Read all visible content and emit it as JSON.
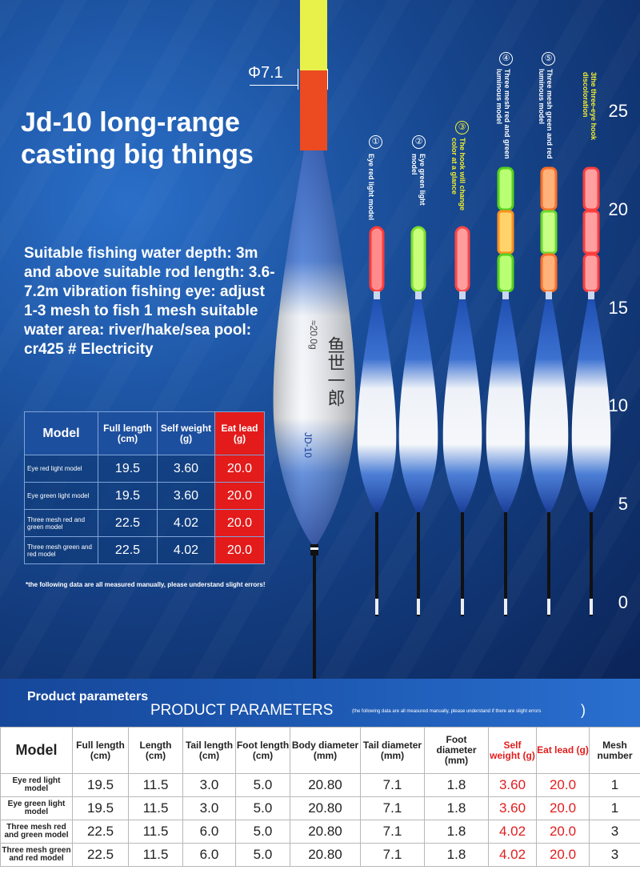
{
  "hero": {
    "title": "Jd-10 long-range casting big things",
    "specs": "Suitable fishing water depth: 3m and above suitable rod length: 3.6- 7.2m vibration fishing eye: adjust 1-3 mesh to fish 1 mesh suitable water area: river/hake/sea pool: cr425 # Electricity",
    "diameter_label": "Φ7.1",
    "float_code": "JD-10",
    "float_weight": "≈20.0g",
    "scale": [
      "25",
      "20",
      "15",
      "10",
      "5",
      "0"
    ]
  },
  "float_labels": [
    {
      "num": "①",
      "text": "Eye red light model",
      "accent": false
    },
    {
      "num": "②",
      "text": "Eye green light model",
      "accent": false
    },
    {
      "num": "③",
      "text": "The hook will change color at a glance",
      "accent": true
    },
    {
      "num": "④",
      "text": "Three mesh red and green luminous model",
      "accent": false
    },
    {
      "num": "⑤",
      "text": "Three mesh green and red luminous model",
      "accent": false
    },
    {
      "num": "",
      "text": "3the three-eye hook discoloration",
      "accent": true
    }
  ],
  "small_table": {
    "headers": [
      "Model",
      "Full length (cm)",
      "Self weight (g)",
      "Eat lead (g)"
    ],
    "rows": [
      [
        "Eye red light model",
        "19.5",
        "3.60",
        "20.0"
      ],
      [
        "Eye green light model",
        "19.5",
        "3.60",
        "20.0"
      ],
      [
        "Three mesh red and green model",
        "22.5",
        "4.02",
        "20.0"
      ],
      [
        "Three mesh green and red model",
        "22.5",
        "4.02",
        "20.0"
      ]
    ]
  },
  "note": "*the following data are all measured manually, please understand slight errors!",
  "params": {
    "title_cn": "Product parameters",
    "title_en": "PRODUCT PARAMETERS",
    "note": "(the following data are all measured manually, please understand if there are slight errors",
    "paren": ")",
    "headers": [
      "Model",
      "Full length (cm)",
      "Length (cm)",
      "Tail length (cm)",
      "Foot length (cm)",
      "Body diameter (mm)",
      "Tail diameter (mm)",
      "Foot diameter (mm)",
      "Self weight (g)",
      "Eat lead (g)",
      "Mesh number"
    ],
    "rows": [
      [
        "Eye red light model",
        "19.5",
        "11.5",
        "3.0",
        "5.0",
        "20.80",
        "7.1",
        "1.8",
        "3.60",
        "20.0",
        "1"
      ],
      [
        "Eye green light model",
        "19.5",
        "11.5",
        "3.0",
        "5.0",
        "20.80",
        "7.1",
        "1.8",
        "3.60",
        "20.0",
        "1"
      ],
      [
        "Three mesh red and green model",
        "22.5",
        "11.5",
        "6.0",
        "5.0",
        "20.80",
        "7.1",
        "1.8",
        "4.02",
        "20.0",
        "3"
      ],
      [
        "Three mesh green and red model",
        "22.5",
        "11.5",
        "6.0",
        "5.0",
        "20.80",
        "7.1",
        "1.8",
        "4.02",
        "20.0",
        "3"
      ]
    ]
  }
}
